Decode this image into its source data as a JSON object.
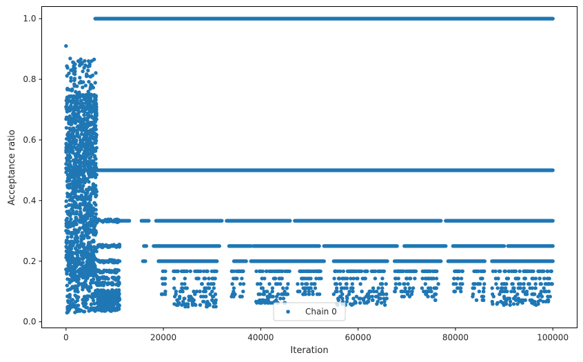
{
  "chart_data": {
    "type": "scatter",
    "title": "",
    "xlabel": "Iteration",
    "ylabel": "Acceptance ratio",
    "xlim": [
      -5000,
      105000
    ],
    "ylim": [
      -0.02,
      1.04
    ],
    "xticks": [
      0,
      20000,
      40000,
      60000,
      80000,
      100000
    ],
    "xtick_labels": [
      "0",
      "20000",
      "40000",
      "60000",
      "80000",
      "100000"
    ],
    "yticks": [
      0.0,
      0.2,
      0.4,
      0.6,
      0.8,
      1.0
    ],
    "ytick_labels": [
      "0.0",
      "0.2",
      "0.4",
      "0.6",
      "0.8",
      "1.0"
    ],
    "grid": false,
    "legend": {
      "position": "lower center",
      "entries": [
        "Chain 0"
      ]
    },
    "series": [
      {
        "name": "Chain 0",
        "color": "#1f77b4",
        "marker": "circle",
        "summary": {
          "iterations": [
            0,
            100000
          ],
          "phases": [
            {
              "x_range": [
                0,
                6300
              ],
              "y_range": [
                0.03,
                0.91
              ],
              "description": "burn-in, continuous spread"
            },
            {
              "x_range": [
                6300,
                11000
              ],
              "y_range": [
                0.03,
                0.5
              ],
              "description": "transition"
            },
            {
              "x_range": [
                6000,
                100000
              ],
              "y_levels": [
                1.0,
                0.5,
                0.333,
                0.25,
                0.2,
                0.167,
                0.143,
                0.125,
                0.111,
                0.1
              ],
              "description": "discrete acceptance levels"
            }
          ]
        },
        "points": [
          [
            0,
            0.91
          ],
          [
            200,
            0.03
          ],
          [
            400,
            0.05
          ],
          [
            600,
            0.45
          ],
          [
            800,
            0.83
          ],
          [
            1000,
            0.62
          ],
          [
            1200,
            0.78
          ],
          [
            1500,
            0.35
          ],
          [
            1800,
            0.72
          ],
          [
            2000,
            0.52
          ],
          [
            2200,
            0.42
          ],
          [
            2500,
            0.86
          ],
          [
            2800,
            0.25
          ],
          [
            3000,
            0.66
          ],
          [
            3200,
            0.85
          ],
          [
            3500,
            0.38
          ],
          [
            3800,
            0.58
          ],
          [
            4000,
            0.06
          ],
          [
            4200,
            0.81
          ],
          [
            4500,
            0.44
          ],
          [
            4800,
            0.28
          ],
          [
            5000,
            0.55
          ],
          [
            5300,
            0.69
          ],
          [
            5600,
            0.15
          ],
          [
            5900,
            0.48
          ],
          [
            6500,
            0.2
          ],
          [
            7000,
            0.33
          ],
          [
            7500,
            0.14
          ],
          [
            8000,
            0.17
          ],
          [
            8500,
            0.25
          ],
          [
            9000,
            0.11
          ],
          [
            9500,
            0.07
          ],
          [
            10000,
            0.05
          ],
          [
            10500,
            0.04
          ],
          [
            11000,
            0.06
          ],
          [
            16000,
            0.2
          ],
          [
            20000,
            0.14
          ],
          [
            25000,
            0.07
          ],
          [
            30000,
            0.05
          ],
          [
            40000,
            0.12
          ],
          [
            50000,
            0.11
          ],
          [
            60000,
            0.07
          ],
          [
            65000,
            0.06
          ],
          [
            70000,
            0.1
          ],
          [
            75000,
            0.07
          ],
          [
            80000,
            0.13
          ],
          [
            85000,
            0.08
          ],
          [
            90000,
            0.09
          ],
          [
            95000,
            0.06
          ],
          [
            100000,
            0.06
          ]
        ]
      }
    ]
  }
}
